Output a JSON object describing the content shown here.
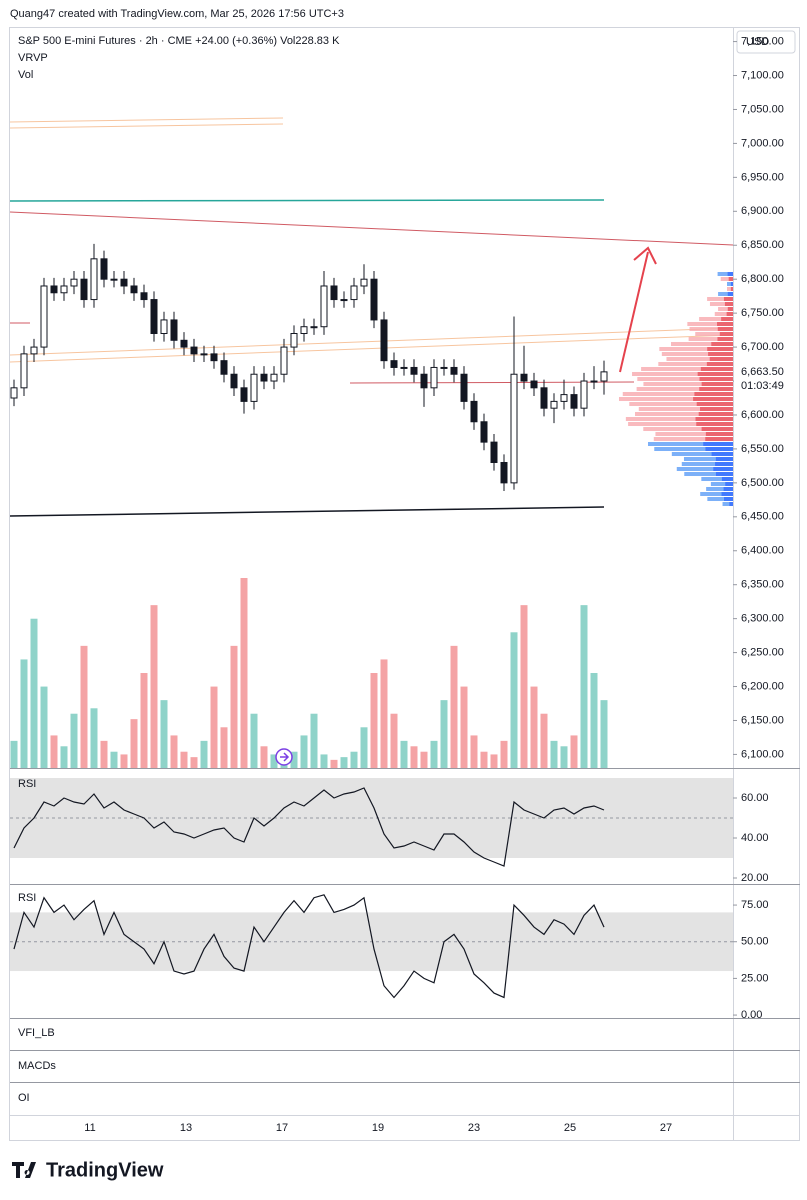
{
  "header": {
    "credit": "Quang47 created with TradingView.com, Mar 25, 2026 17:56 UTC+3"
  },
  "chart_data": {
    "type": "candlestick",
    "title": "S&P 500 E-mini Futures · 2h · CME  +24.00 (+0.36%)  Vol228.83 K",
    "indicators": [
      "VRVP",
      "Vol"
    ],
    "currency": "USD",
    "last_price_label": "6,663.50",
    "countdown": "01:03:49",
    "ylim": [
      6080,
      7170
    ],
    "yticks": [
      {
        "value": 7150,
        "label": "7,150.00"
      },
      {
        "value": 7100,
        "label": "7,100.00"
      },
      {
        "value": 7050,
        "label": "7,050.00"
      },
      {
        "value": 7000,
        "label": "7,000.00"
      },
      {
        "value": 6950,
        "label": "6,950.00"
      },
      {
        "value": 6900,
        "label": "6,900.00"
      },
      {
        "value": 6850,
        "label": "6,850.00"
      },
      {
        "value": 6800,
        "label": "6,800.00"
      },
      {
        "value": 6750,
        "label": "6,750.00"
      },
      {
        "value": 6700,
        "label": "6,700.00"
      },
      {
        "value": 6650,
        "label": "6,650.00"
      },
      {
        "value": 6600,
        "label": "6,600.00"
      },
      {
        "value": 6550,
        "label": "6,550.00"
      },
      {
        "value": 6500,
        "label": "6,500.00"
      },
      {
        "value": 6450,
        "label": "6,450.00"
      },
      {
        "value": 6400,
        "label": "6,400.00"
      },
      {
        "value": 6350,
        "label": "6,350.00"
      },
      {
        "value": 6300,
        "label": "6,300.00"
      },
      {
        "value": 6250,
        "label": "6,250.00"
      },
      {
        "value": 6200,
        "label": "6,200.00"
      },
      {
        "value": 6150,
        "label": "6,150.00"
      },
      {
        "value": 6100,
        "label": "6,100.00"
      }
    ],
    "date_labels": [
      "11",
      "13",
      "17",
      "19",
      "23",
      "25",
      "27"
    ],
    "up_color": "#ffffff",
    "down_color": "#131722",
    "volume_up_color": "#8fd3c9",
    "volume_down_color": "#f4a3a5",
    "candles": [
      [
        6625,
        6652,
        6613,
        6640
      ],
      [
        6640,
        6702,
        6628,
        6690
      ],
      [
        6690,
        6712,
        6678,
        6700
      ],
      [
        6700,
        6802,
        6688,
        6790
      ],
      [
        6790,
        6802,
        6768,
        6780
      ],
      [
        6780,
        6802,
        6768,
        6790
      ],
      [
        6790,
        6812,
        6778,
        6800
      ],
      [
        6800,
        6812,
        6758,
        6770
      ],
      [
        6770,
        6852,
        6758,
        6830
      ],
      [
        6830,
        6842,
        6788,
        6800
      ],
      [
        6800,
        6812,
        6788,
        6800
      ],
      [
        6800,
        6812,
        6778,
        6790
      ],
      [
        6790,
        6802,
        6768,
        6780
      ],
      [
        6780,
        6792,
        6758,
        6770
      ],
      [
        6770,
        6782,
        6708,
        6720
      ],
      [
        6720,
        6752,
        6708,
        6740
      ],
      [
        6740,
        6752,
        6698,
        6710
      ],
      [
        6710,
        6722,
        6688,
        6700
      ],
      [
        6700,
        6712,
        6678,
        6690
      ],
      [
        6690,
        6702,
        6678,
        6690
      ],
      [
        6690,
        6702,
        6668,
        6680
      ],
      [
        6680,
        6692,
        6648,
        6660
      ],
      [
        6660,
        6672,
        6628,
        6640
      ],
      [
        6640,
        6652,
        6602,
        6620
      ],
      [
        6620,
        6672,
        6608,
        6660
      ],
      [
        6660,
        6672,
        6638,
        6650
      ],
      [
        6650,
        6672,
        6638,
        6660
      ],
      [
        6660,
        6712,
        6648,
        6700
      ],
      [
        6700,
        6732,
        6688,
        6720
      ],
      [
        6720,
        6742,
        6708,
        6730
      ],
      [
        6730,
        6742,
        6718,
        6730
      ],
      [
        6730,
        6812,
        6718,
        6790
      ],
      [
        6790,
        6802,
        6758,
        6770
      ],
      [
        6770,
        6782,
        6758,
        6770
      ],
      [
        6770,
        6802,
        6758,
        6790
      ],
      [
        6790,
        6822,
        6778,
        6800
      ],
      [
        6800,
        6812,
        6728,
        6740
      ],
      [
        6740,
        6752,
        6668,
        6680
      ],
      [
        6680,
        6692,
        6658,
        6670
      ],
      [
        6670,
        6682,
        6658,
        6670
      ],
      [
        6670,
        6682,
        6648,
        6660
      ],
      [
        6660,
        6672,
        6612,
        6640
      ],
      [
        6640,
        6682,
        6628,
        6670
      ],
      [
        6670,
        6682,
        6658,
        6670
      ],
      [
        6670,
        6682,
        6648,
        6660
      ],
      [
        6660,
        6672,
        6608,
        6620
      ],
      [
        6620,
        6632,
        6578,
        6590
      ],
      [
        6590,
        6602,
        6548,
        6560
      ],
      [
        6560,
        6572,
        6518,
        6530
      ],
      [
        6530,
        6542,
        6488,
        6500
      ],
      [
        6500,
        6745,
        6490,
        6660
      ],
      [
        6660,
        6702,
        6638,
        6650
      ],
      [
        6650,
        6662,
        6628,
        6640
      ],
      [
        6640,
        6652,
        6598,
        6610
      ],
      [
        6610,
        6632,
        6588,
        6620
      ],
      [
        6620,
        6652,
        6608,
        6630
      ],
      [
        6630,
        6642,
        6598,
        6610
      ],
      [
        6610,
        6662,
        6598,
        6650
      ],
      [
        6650,
        6672,
        6638,
        6650
      ],
      [
        6650,
        6680,
        6630,
        6663.5
      ]
    ],
    "volume": [
      10,
      40,
      55,
      30,
      12,
      8,
      20,
      45,
      22,
      10,
      6,
      5,
      18,
      35,
      60,
      25,
      12,
      6,
      4,
      10,
      30,
      15,
      45,
      70,
      20,
      8,
      5,
      4,
      6,
      12,
      20,
      5,
      3,
      4,
      6,
      15,
      35,
      40,
      20,
      10,
      8,
      6,
      10,
      25,
      45,
      30,
      12,
      6,
      5,
      10,
      50,
      60,
      30,
      20,
      10,
      8,
      12,
      60,
      35,
      25
    ],
    "rsi_panes": [
      {
        "name": "RSI",
        "ylim": [
          17,
          73
        ],
        "band": [
          30,
          70
        ],
        "mid": 50,
        "yticks": [
          {
            "value": 60,
            "label": "60.00"
          },
          {
            "value": 40,
            "label": "40.00"
          },
          {
            "value": 20,
            "label": "20.00"
          }
        ],
        "values": [
          35,
          45,
          50,
          58,
          56,
          60,
          58,
          57,
          62,
          55,
          58,
          54,
          52,
          50,
          45,
          48,
          43,
          42,
          40,
          42,
          44,
          45,
          40,
          38,
          50,
          46,
          50,
          55,
          58,
          56,
          60,
          64,
          60,
          62,
          63,
          65,
          55,
          42,
          35,
          36,
          38,
          36,
          34,
          42,
          42,
          38,
          33,
          30,
          28,
          26,
          58,
          54,
          52,
          50,
          54,
          55,
          52,
          55,
          56,
          54
        ]
      },
      {
        "name": "RSI",
        "ylim": [
          -2,
          88
        ],
        "band": [
          30,
          70
        ],
        "mid": 50,
        "yticks": [
          {
            "value": 75,
            "label": "75.00"
          },
          {
            "value": 50,
            "label": "50.00"
          },
          {
            "value": 25,
            "label": "25.00"
          },
          {
            "value": 0,
            "label": "0.00"
          }
        ],
        "values": [
          45,
          70,
          60,
          80,
          70,
          75,
          65,
          72,
          78,
          55,
          70,
          55,
          50,
          45,
          35,
          50,
          30,
          28,
          30,
          45,
          55,
          40,
          32,
          30,
          60,
          50,
          60,
          70,
          78,
          70,
          80,
          82,
          70,
          72,
          75,
          80,
          45,
          20,
          12,
          20,
          30,
          25,
          22,
          50,
          55,
          45,
          28,
          22,
          15,
          12,
          75,
          68,
          60,
          55,
          65,
          62,
          55,
          68,
          75,
          60
        ]
      }
    ],
    "empty_panes": [
      "VFI_LB",
      "MACDs",
      "OI"
    ]
  },
  "footer": {
    "brand": "TradingView"
  }
}
